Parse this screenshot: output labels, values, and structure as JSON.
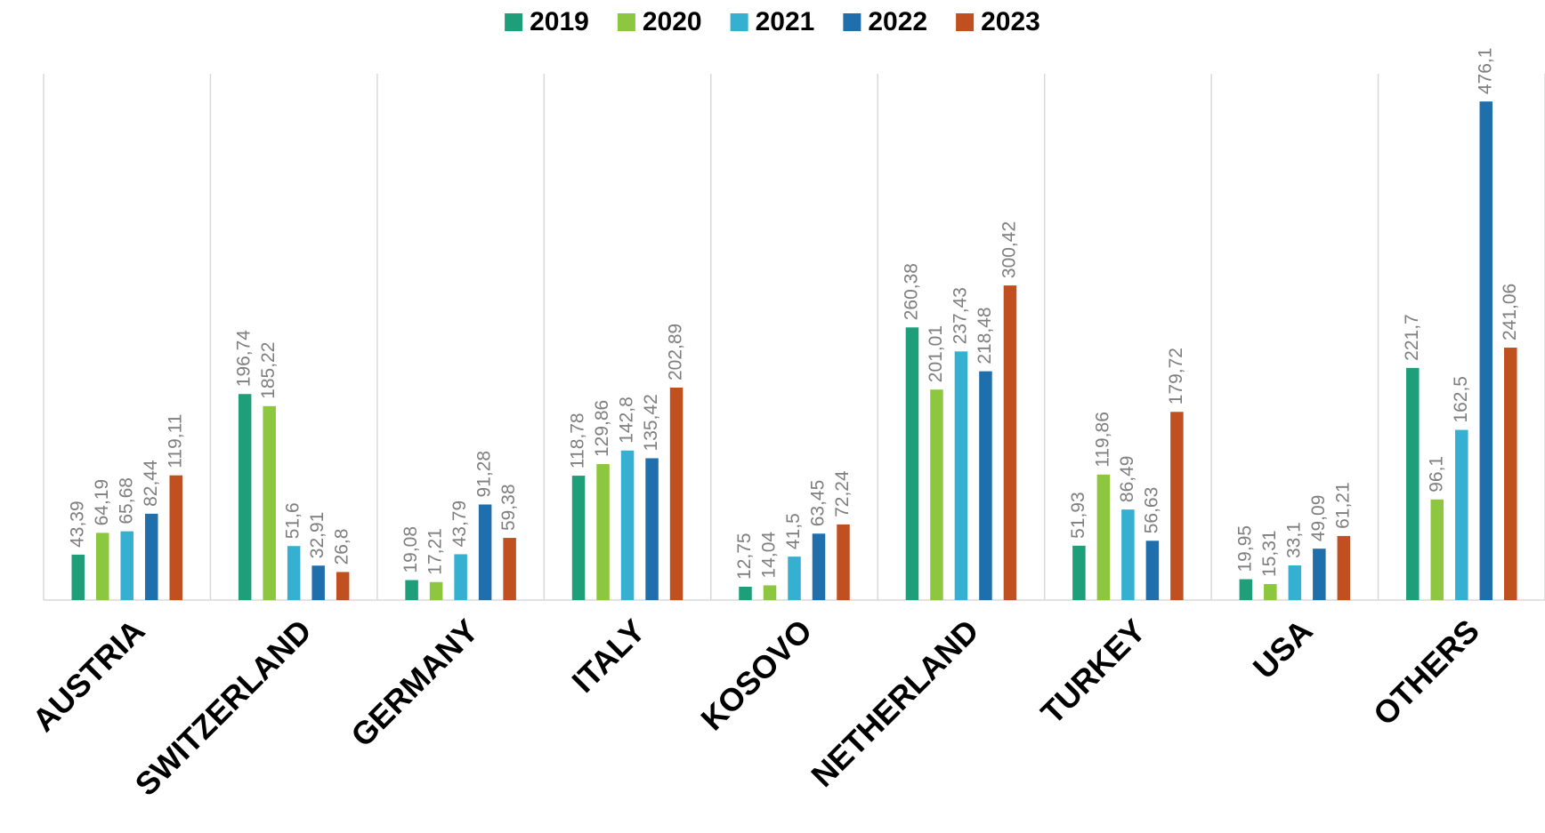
{
  "chart_data": {
    "type": "bar",
    "categories": [
      "AUSTRIA",
      "SWITZERLAND",
      "GERMANY",
      "ITALY",
      "KOSOVO",
      "NETHERLAND",
      "TURKEY",
      "USA",
      "OTHERS"
    ],
    "series": [
      {
        "name": "2019",
        "color": "#1f9e7a",
        "values": [
          43.39,
          196.74,
          19.08,
          118.78,
          12.75,
          260.38,
          51.93,
          19.95,
          221.7
        ],
        "value_labels": [
          "43,39",
          "196,74",
          "19,08",
          "118,78",
          "12,75",
          "260,38",
          "51,93",
          "19,95",
          "221,7"
        ]
      },
      {
        "name": "2020",
        "color": "#8dc63f",
        "values": [
          64.19,
          185.22,
          17.21,
          129.86,
          14.04,
          201.01,
          119.86,
          15.31,
          96.1
        ],
        "value_labels": [
          "64,19",
          "185,22",
          "17,21",
          "129,86",
          "14,04",
          "201,01",
          "119,86",
          "15,31",
          "96,1"
        ]
      },
      {
        "name": "2021",
        "color": "#35b0d0",
        "values": [
          65.68,
          51.6,
          43.79,
          142.8,
          41.5,
          237.43,
          86.49,
          33.1,
          162.5
        ],
        "value_labels": [
          "65,68",
          "51,6",
          "43,79",
          "142,8",
          "41,5",
          "237,43",
          "86,49",
          "33,1",
          "162,5"
        ]
      },
      {
        "name": "2022",
        "color": "#1f6fad",
        "values": [
          82.44,
          32.91,
          91.28,
          135.42,
          63.45,
          218.48,
          56.63,
          49.09,
          476.1
        ],
        "value_labels": [
          "82,44",
          "32,91",
          "91,28",
          "135,42",
          "63,45",
          "218,48",
          "56,63",
          "49,09",
          "476,1"
        ]
      },
      {
        "name": "2023",
        "color": "#c0501f",
        "values": [
          119.11,
          26.8,
          59.38,
          202.89,
          72.24,
          300.42,
          179.72,
          61.21,
          241.06
        ],
        "value_labels": [
          "119,11",
          "26,8",
          "59,38",
          "202,89",
          "72,24",
          "300,42",
          "179,72",
          "61,21",
          "241,06"
        ]
      }
    ],
    "ylim": [
      0,
      500
    ],
    "legend": "top"
  }
}
